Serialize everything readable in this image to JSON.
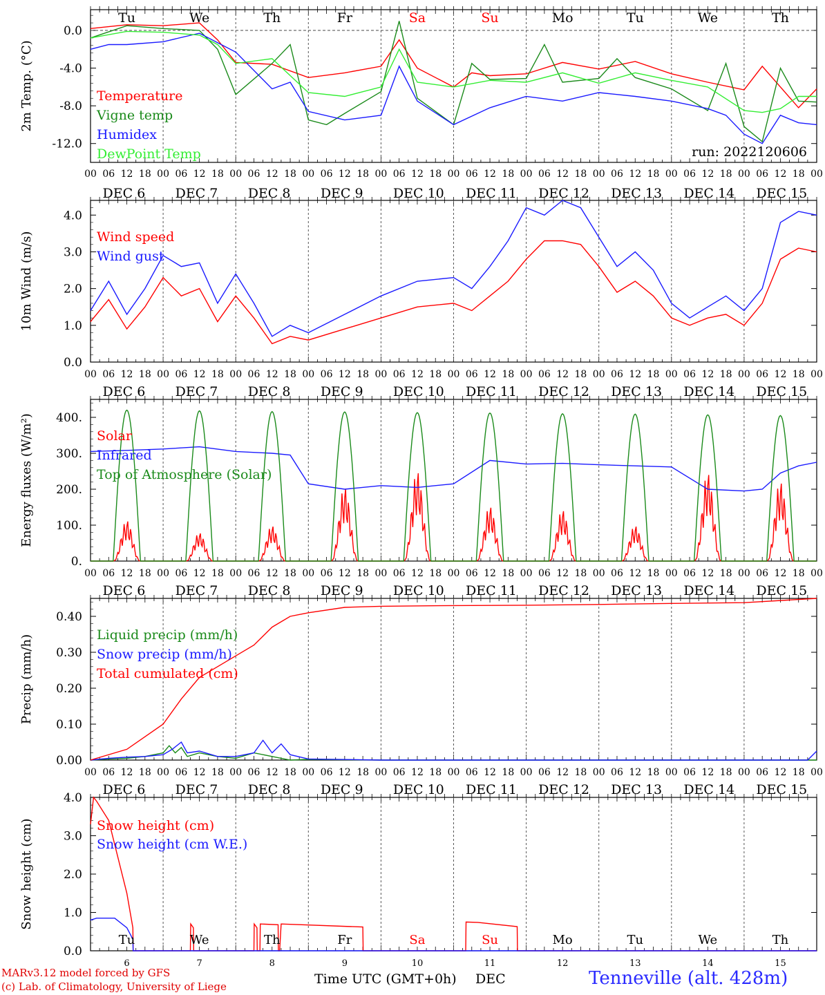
{
  "footer": {
    "model": "MARv3.12 model forced by GFS",
    "credit": "(c) Lab. of Climatology, University of Liege",
    "xaxis_title": "Time UTC (GMT+0h)",
    "xaxis_month": "DEC",
    "station": "Tenneville (alt. 428m)"
  },
  "colors": {
    "red": "#ff0000",
    "green": "#1a8a1a",
    "blue": "#1a1aff",
    "lightgreen": "#33ee33"
  },
  "weekdays": [
    "Tu",
    "We",
    "Th",
    "Fr",
    "Sa",
    "Su",
    "Mo",
    "Tu",
    "We",
    "Th"
  ],
  "weekday_colors": [
    "black",
    "black",
    "black",
    "black",
    "red",
    "red",
    "black",
    "black",
    "black",
    "black"
  ],
  "day_labels": [
    "DEC 6",
    "DEC 7",
    "DEC 8",
    "DEC 9",
    "DEC 10",
    "DEC 11",
    "DEC 12",
    "DEC 13",
    "DEC 14",
    "DEC 15"
  ],
  "hour_ticks": [
    "00",
    "06",
    "12",
    "18"
  ],
  "last_hour_tick": "00",
  "bottom_day_numbers": [
    "6",
    "7",
    "8",
    "9",
    "10",
    "11",
    "12",
    "13",
    "14",
    "15"
  ],
  "chart_data": [
    {
      "type": "line",
      "ylabel": "2m Temp. (°C)",
      "ylim": [
        -14.0,
        2.2
      ],
      "yticks": [
        0.0,
        -4.0,
        -8.0,
        -12.0
      ],
      "ytick_labels": [
        "0.0",
        "-4.0",
        "-8.0",
        "-12.0"
      ],
      "annotation": "run: 2022120606",
      "legend_position": "left",
      "series": [
        {
          "name": "Temperature",
          "color": "#ff0000",
          "x": [
            0,
            12,
            24,
            36,
            42,
            48,
            60,
            72,
            84,
            96,
            102,
            108,
            120,
            126,
            132,
            144,
            156,
            168,
            180,
            192,
            204,
            216,
            222,
            228,
            234,
            240
          ],
          "values": [
            0.2,
            0.6,
            0.5,
            0.8,
            -1.0,
            -3.4,
            -3.6,
            -5.0,
            -4.5,
            -3.8,
            -1.0,
            -4.0,
            -6.0,
            -4.5,
            -4.8,
            -4.6,
            -3.4,
            -4.1,
            -3.3,
            -4.6,
            -5.5,
            -6.3,
            -3.8,
            -6.0,
            -8.2,
            -6.2
          ]
        },
        {
          "name": "Vigne temp",
          "color": "#1a8a1a",
          "x": [
            0,
            12,
            24,
            36,
            42,
            48,
            60,
            66,
            72,
            78,
            84,
            96,
            102,
            108,
            120,
            126,
            132,
            144,
            150,
            156,
            168,
            174,
            180,
            192,
            204,
            210,
            216,
            222,
            228,
            234,
            240
          ],
          "values": [
            -0.8,
            0.5,
            0.2,
            0.0,
            -2.0,
            -6.8,
            -3.5,
            -1.5,
            -9.5,
            -10.0,
            -8.8,
            -6.5,
            1.0,
            -7.2,
            -10.0,
            -3.5,
            -5.2,
            -5.1,
            -1.5,
            -5.5,
            -5.1,
            -3.0,
            -5.0,
            -6.2,
            -8.5,
            -3.5,
            -10.2,
            -11.8,
            -4.0,
            -7.5,
            -7.6
          ]
        },
        {
          "name": "Humidex",
          "color": "#1a1aff",
          "x": [
            0,
            6,
            12,
            24,
            36,
            48,
            60,
            66,
            72,
            84,
            96,
            102,
            108,
            120,
            132,
            144,
            156,
            168,
            180,
            192,
            204,
            210,
            216,
            222,
            228,
            234,
            240
          ],
          "values": [
            -2.0,
            -1.5,
            -1.5,
            -1.2,
            -0.3,
            -2.3,
            -6.2,
            -5.5,
            -8.6,
            -9.5,
            -9.0,
            -3.8,
            -7.5,
            -10.0,
            -8.2,
            -7.0,
            -7.5,
            -6.6,
            -7.0,
            -7.5,
            -8.3,
            -9.0,
            -11.0,
            -12.0,
            -9.0,
            -9.8,
            -10.0
          ]
        },
        {
          "name": "DewPoint Temp",
          "color": "#33ee33",
          "x": [
            0,
            12,
            24,
            36,
            42,
            48,
            60,
            72,
            84,
            96,
            102,
            108,
            120,
            132,
            144,
            156,
            168,
            180,
            192,
            204,
            216,
            222,
            228,
            234,
            240
          ],
          "values": [
            -0.8,
            -0.1,
            -0.2,
            -0.5,
            -1.5,
            -3.5,
            -3.0,
            -6.6,
            -7.0,
            -6.0,
            -2.0,
            -5.5,
            -6.0,
            -5.3,
            -5.5,
            -4.5,
            -5.6,
            -4.5,
            -5.3,
            -6.0,
            -8.5,
            -8.7,
            -8.3,
            -7.0,
            -7.0
          ]
        }
      ]
    },
    {
      "type": "line",
      "ylabel": "10m Wind (m/s)",
      "ylim": [
        0.0,
        4.4
      ],
      "yticks": [
        0.0,
        1.0,
        2.0,
        3.0,
        4.0
      ],
      "ytick_labels": [
        "0.0",
        "1.0",
        "2.0",
        "3.0",
        "4.0"
      ],
      "legend_position": "left",
      "series": [
        {
          "name": "Wind speed",
          "color": "#ff0000",
          "x": [
            0,
            6,
            12,
            18,
            24,
            30,
            36,
            42,
            48,
            54,
            60,
            66,
            72,
            84,
            96,
            108,
            120,
            126,
            132,
            138,
            144,
            150,
            156,
            162,
            168,
            174,
            180,
            186,
            192,
            198,
            204,
            210,
            216,
            222,
            228,
            234,
            240
          ],
          "values": [
            1.1,
            1.7,
            0.9,
            1.5,
            2.3,
            1.8,
            2.0,
            1.1,
            1.8,
            1.2,
            0.5,
            0.7,
            0.6,
            0.9,
            1.2,
            1.5,
            1.6,
            1.4,
            1.8,
            2.2,
            2.8,
            3.3,
            3.3,
            3.2,
            2.6,
            1.9,
            2.2,
            1.8,
            1.2,
            1.0,
            1.2,
            1.3,
            1.0,
            1.6,
            2.8,
            3.1,
            3.0
          ]
        },
        {
          "name": "Wind gust",
          "color": "#1a1aff",
          "x": [
            0,
            6,
            12,
            18,
            24,
            30,
            36,
            42,
            48,
            54,
            60,
            66,
            72,
            84,
            96,
            108,
            120,
            126,
            132,
            138,
            144,
            150,
            156,
            162,
            168,
            174,
            180,
            186,
            192,
            198,
            204,
            210,
            216,
            222,
            228,
            234,
            240
          ],
          "values": [
            1.4,
            2.2,
            1.3,
            2.0,
            2.9,
            2.6,
            2.7,
            1.6,
            2.4,
            1.6,
            0.7,
            1.0,
            0.8,
            1.3,
            1.8,
            2.2,
            2.3,
            2.0,
            2.6,
            3.3,
            4.2,
            4.0,
            4.4,
            4.2,
            3.4,
            2.6,
            3.0,
            2.5,
            1.6,
            1.2,
            1.5,
            1.8,
            1.4,
            2.0,
            3.8,
            4.1,
            4.0
          ]
        }
      ]
    },
    {
      "type": "line",
      "ylabel": "Energy fluxes (W/m²)",
      "ylim": [
        0,
        450
      ],
      "yticks": [
        0,
        100,
        200,
        300,
        400
      ],
      "ytick_labels": [
        "0.",
        "100.",
        "200.",
        "300.",
        "400."
      ],
      "legend_position": "left",
      "series": [
        {
          "name": "Solar",
          "color": "#ff0000",
          "daily_peak": [
            115,
            80,
            100,
            210,
            255,
            155,
            145,
            100,
            250,
            225
          ]
        },
        {
          "name": "Infrared",
          "color": "#1a1aff",
          "x": [
            0,
            12,
            24,
            36,
            48,
            60,
            66,
            72,
            84,
            96,
            108,
            120,
            132,
            144,
            156,
            168,
            180,
            192,
            204,
            216,
            222,
            228,
            234,
            240
          ],
          "values": [
            305,
            308,
            312,
            318,
            305,
            300,
            295,
            215,
            200,
            210,
            205,
            215,
            280,
            270,
            272,
            268,
            265,
            262,
            200,
            195,
            200,
            245,
            265,
            275
          ]
        },
        {
          "name": "Top of Atmosphere (Solar)",
          "color": "#1a8a1a",
          "daily_peak": [
            420,
            418,
            416,
            415,
            413,
            412,
            410,
            409,
            407,
            405
          ]
        }
      ]
    },
    {
      "type": "line",
      "ylabel": "Precip (mm/h)",
      "ylim": [
        0.0,
        0.45
      ],
      "yticks": [
        0.0,
        0.1,
        0.2,
        0.3,
        0.4
      ],
      "ytick_labels": [
        "0.00",
        "0.10",
        "0.20",
        "0.30",
        "0.40"
      ],
      "legend_position": "left",
      "series": [
        {
          "name": "Liquid precip (mm/h)",
          "color": "#1a8a1a",
          "x": [
            0,
            6,
            12,
            18,
            24,
            26,
            28,
            30,
            32,
            36,
            42,
            48,
            54,
            60,
            66,
            72,
            96,
            240
          ],
          "values": [
            0,
            0.003,
            0.005,
            0.01,
            0.02,
            0.04,
            0.02,
            0.035,
            0.01,
            0.02,
            0.01,
            0.005,
            0.02,
            0.01,
            0.0,
            0.002,
            0.0,
            0.0
          ]
        },
        {
          "name": "Snow precip (mm/h)",
          "color": "#1a1aff",
          "x": [
            0,
            6,
            12,
            18,
            24,
            27,
            30,
            32,
            36,
            42,
            48,
            54,
            57,
            60,
            63,
            66,
            72,
            96,
            237,
            240
          ],
          "values": [
            0,
            0.005,
            0.008,
            0.01,
            0.015,
            0.03,
            0.05,
            0.02,
            0.025,
            0.01,
            0.01,
            0.02,
            0.055,
            0.02,
            0.045,
            0.015,
            0.003,
            0.0,
            0.0,
            0.025
          ]
        },
        {
          "name": "Total cumulated (cm)",
          "color": "#ff0000",
          "x": [
            0,
            12,
            24,
            30,
            36,
            42,
            48,
            54,
            60,
            66,
            72,
            84,
            96,
            120,
            144,
            168,
            192,
            216,
            240
          ],
          "values": [
            0.0,
            0.03,
            0.1,
            0.17,
            0.23,
            0.26,
            0.29,
            0.32,
            0.37,
            0.4,
            0.41,
            0.425,
            0.428,
            0.43,
            0.431,
            0.433,
            0.436,
            0.438,
            0.45
          ]
        }
      ]
    },
    {
      "type": "line",
      "ylabel": "Snow height (cm)",
      "ylim": [
        0.0,
        4.0
      ],
      "yticks": [
        0.0,
        1.0,
        2.0,
        3.0,
        4.0
      ],
      "ytick_labels": [
        "0.0",
        "1.0",
        "2.0",
        "3.0",
        "4.0"
      ],
      "legend_position": "left",
      "series": [
        {
          "name": "Snow height (cm)",
          "color": "#ff0000",
          "x": [
            0,
            1,
            2,
            6,
            12,
            14,
            14.1,
            33,
            33.1,
            34,
            34.1,
            54,
            54.1,
            55,
            55.1,
            56,
            56.1,
            62,
            62.1,
            62.5,
            63,
            90,
            90.1,
            124,
            124.1,
            128,
            141,
            141.1,
            240
          ],
          "values": [
            3.3,
            4.0,
            3.9,
            3.4,
            1.5,
            0.6,
            0.0,
            0.0,
            0.7,
            0.6,
            0.0,
            0.0,
            0.7,
            0.6,
            0.0,
            0.0,
            0.7,
            0.68,
            0.0,
            0.0,
            0.7,
            0.62,
            0.0,
            0.0,
            0.75,
            0.74,
            0.63,
            0.0,
            0.0
          ]
        },
        {
          "name": "Snow height (cm W.E.)",
          "color": "#1a1aff",
          "x": [
            0,
            2,
            8,
            12,
            14,
            14.1,
            240
          ],
          "values": [
            0.8,
            0.85,
            0.85,
            0.6,
            0.3,
            0.0,
            0.0
          ]
        }
      ]
    }
  ]
}
